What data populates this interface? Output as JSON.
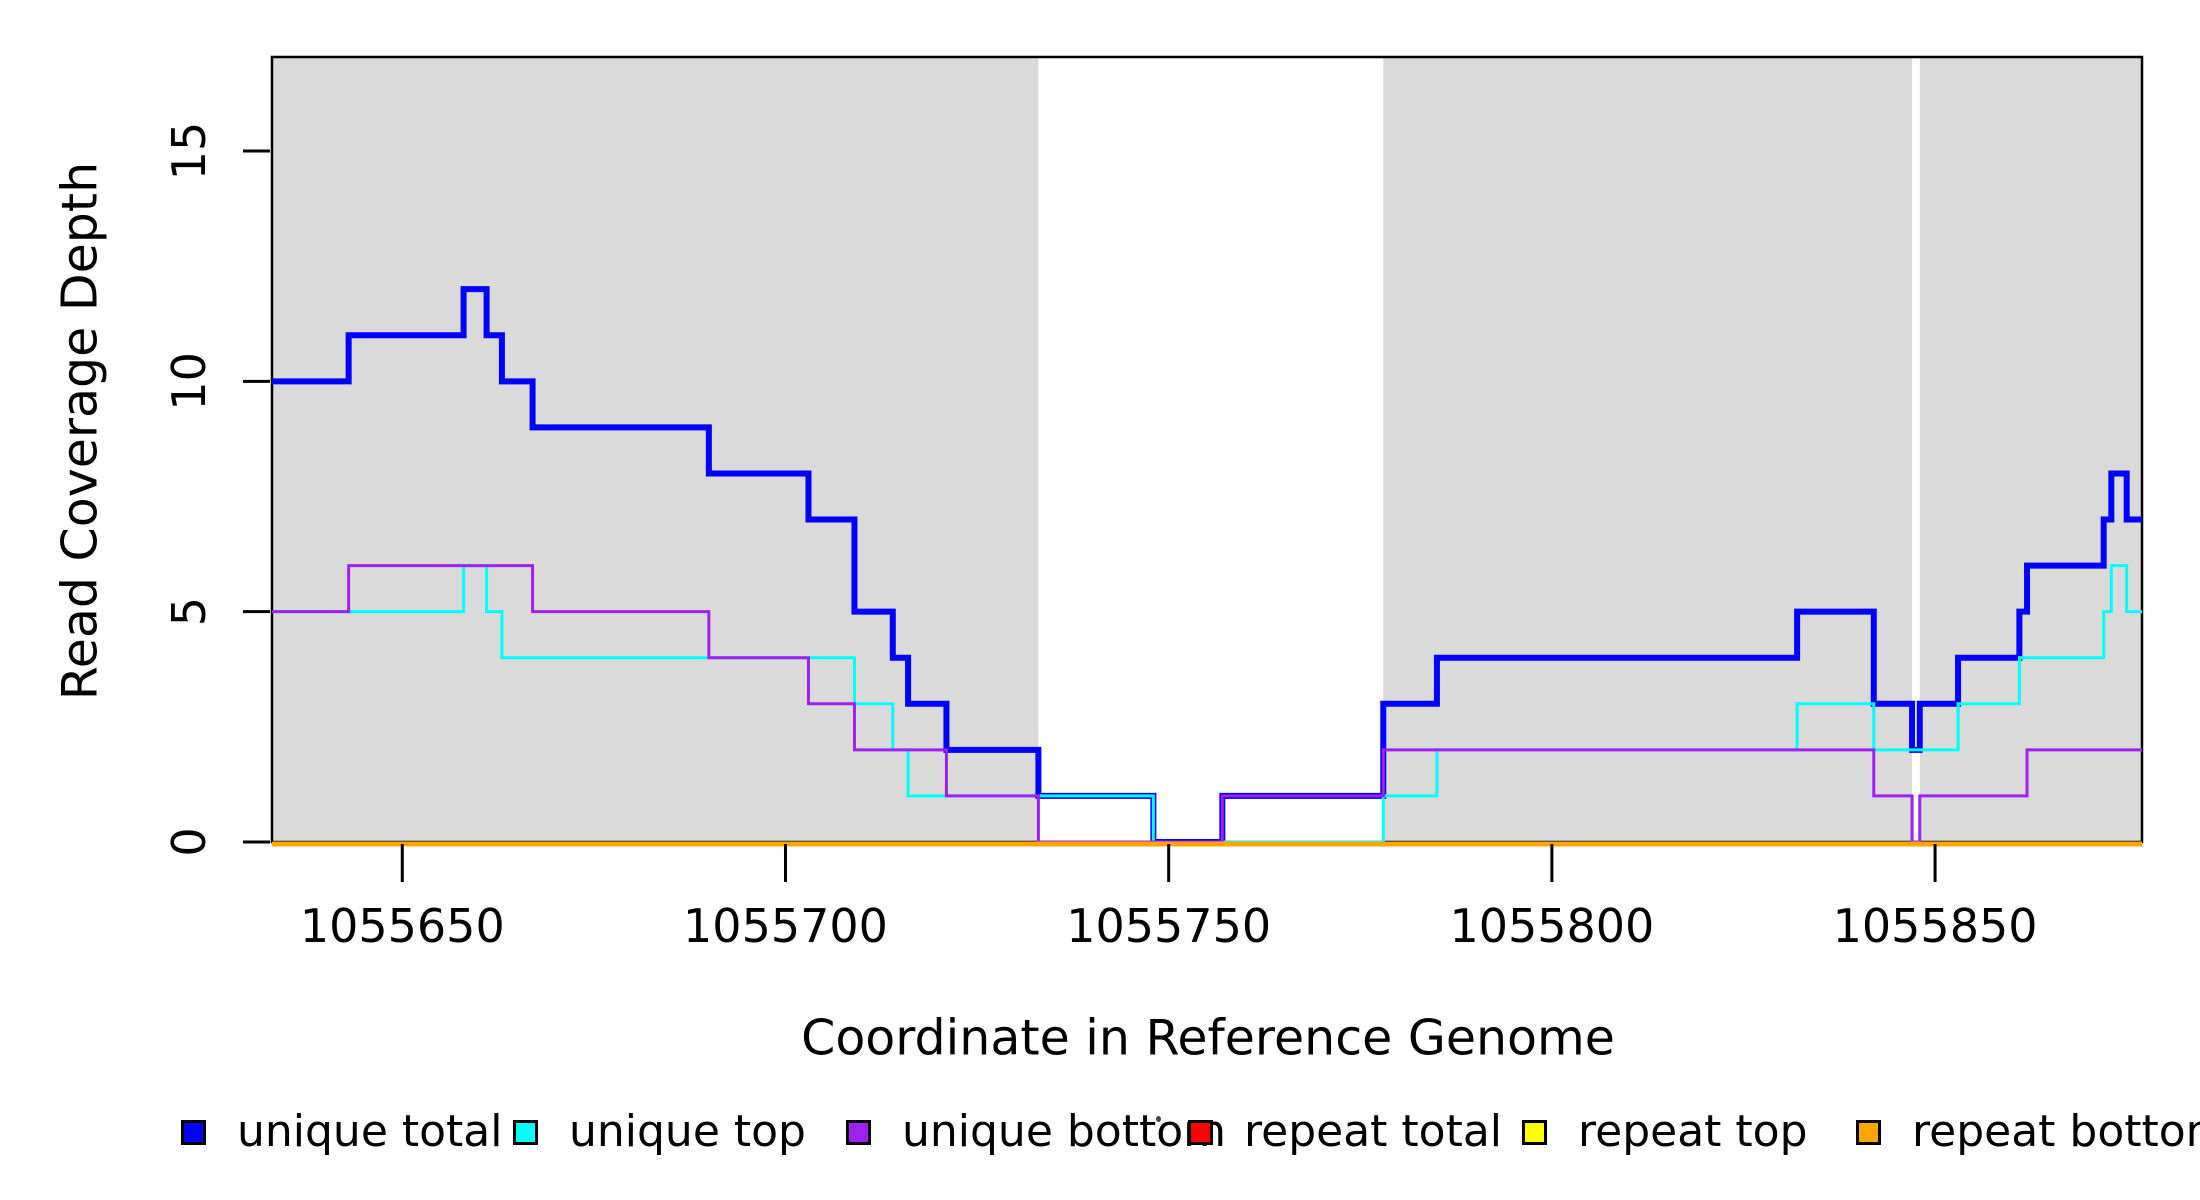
{
  "figure": {
    "background_color": "#FFFFFF",
    "plot_background_shaded": "#DADADA",
    "plot_background_unshaded": "#FFFFFF",
    "box_color": "#000000"
  },
  "chart_data": {
    "type": "line",
    "subtype": "step",
    "title": "",
    "xlabel": "Coordinate in Reference Genome",
    "ylabel": "Read Coverage Depth",
    "xlim": [
      1055633,
      1055877
    ],
    "ylim": [
      0,
      17.04
    ],
    "x_ticks": [
      1055650,
      1055700,
      1055750,
      1055800,
      1055850
    ],
    "y_ticks": [
      0,
      5,
      10,
      15
    ],
    "grid": false,
    "legend_position": "bottom",
    "shaded_x_ranges": [
      [
        1055633,
        1055733
      ],
      [
        1055778,
        1055847
      ],
      [
        1055848,
        1055877
      ]
    ],
    "unshaded_x_ranges": [
      [
        1055733,
        1055778
      ],
      [
        1055847,
        1055848
      ]
    ],
    "series": [
      {
        "name": "unique total",
        "color": "#0000FF",
        "line_width": 6,
        "steps": [
          [
            1055633,
            10
          ],
          [
            1055643,
            11
          ],
          [
            1055658,
            12
          ],
          [
            1055661,
            11
          ],
          [
            1055663,
            10
          ],
          [
            1055667,
            9
          ],
          [
            1055690,
            8
          ],
          [
            1055703,
            7
          ],
          [
            1055709,
            5
          ],
          [
            1055714,
            4
          ],
          [
            1055716,
            3
          ],
          [
            1055721,
            2
          ],
          [
            1055733,
            1
          ],
          [
            1055748,
            0
          ],
          [
            1055757,
            1
          ],
          [
            1055778,
            3
          ],
          [
            1055785,
            4
          ],
          [
            1055832,
            5
          ],
          [
            1055842,
            3
          ],
          [
            1055847,
            2
          ],
          [
            1055848,
            3
          ],
          [
            1055853,
            4
          ],
          [
            1055861,
            5
          ],
          [
            1055862,
            6
          ],
          [
            1055872,
            7
          ],
          [
            1055873,
            8
          ],
          [
            1055875,
            7
          ]
        ]
      },
      {
        "name": "unique top",
        "color": "#00FFFF",
        "line_width": 3,
        "steps": [
          [
            1055633,
            5
          ],
          [
            1055658,
            6
          ],
          [
            1055661,
            5
          ],
          [
            1055663,
            4
          ],
          [
            1055709,
            3
          ],
          [
            1055714,
            2
          ],
          [
            1055716,
            1
          ],
          [
            1055748,
            0
          ],
          [
            1055778,
            1
          ],
          [
            1055785,
            2
          ],
          [
            1055832,
            3
          ],
          [
            1055842,
            2
          ],
          [
            1055853,
            3
          ],
          [
            1055861,
            4
          ],
          [
            1055872,
            5
          ],
          [
            1055873,
            6
          ],
          [
            1055875,
            5
          ]
        ]
      },
      {
        "name": "unique bottom",
        "color": "#A020F0",
        "line_width": 3,
        "steps": [
          [
            1055633,
            5
          ],
          [
            1055643,
            6
          ],
          [
            1055667,
            5
          ],
          [
            1055690,
            4
          ],
          [
            1055703,
            3
          ],
          [
            1055709,
            2
          ],
          [
            1055721,
            1
          ],
          [
            1055733,
            0
          ],
          [
            1055757,
            1
          ],
          [
            1055778,
            2
          ],
          [
            1055842,
            1
          ],
          [
            1055847,
            0
          ],
          [
            1055848,
            1
          ],
          [
            1055862,
            2
          ]
        ]
      },
      {
        "name": "repeat total",
        "color": "#FF0000",
        "line_width": 3,
        "steps": [
          [
            1055633,
            0
          ]
        ]
      },
      {
        "name": "repeat top",
        "color": "#FFFF00",
        "line_width": 3,
        "steps": [
          [
            1055633,
            0
          ]
        ]
      },
      {
        "name": "repeat bottom",
        "color": "#FFA500",
        "line_width": 5,
        "steps": [
          [
            1055633,
            0
          ]
        ]
      }
    ]
  },
  "legend": {
    "items": [
      {
        "label": "unique total",
        "color": "#0000FF"
      },
      {
        "label": "unique top",
        "color": "#00FFFF"
      },
      {
        "label": "unique bottom",
        "color": "#A020F0"
      },
      {
        "label": "repeat total",
        "color": "#FF0000"
      },
      {
        "label": "repeat top",
        "color": "#FFFF00"
      },
      {
        "label": "repeat bottom",
        "color": "#FFA500"
      }
    ]
  }
}
